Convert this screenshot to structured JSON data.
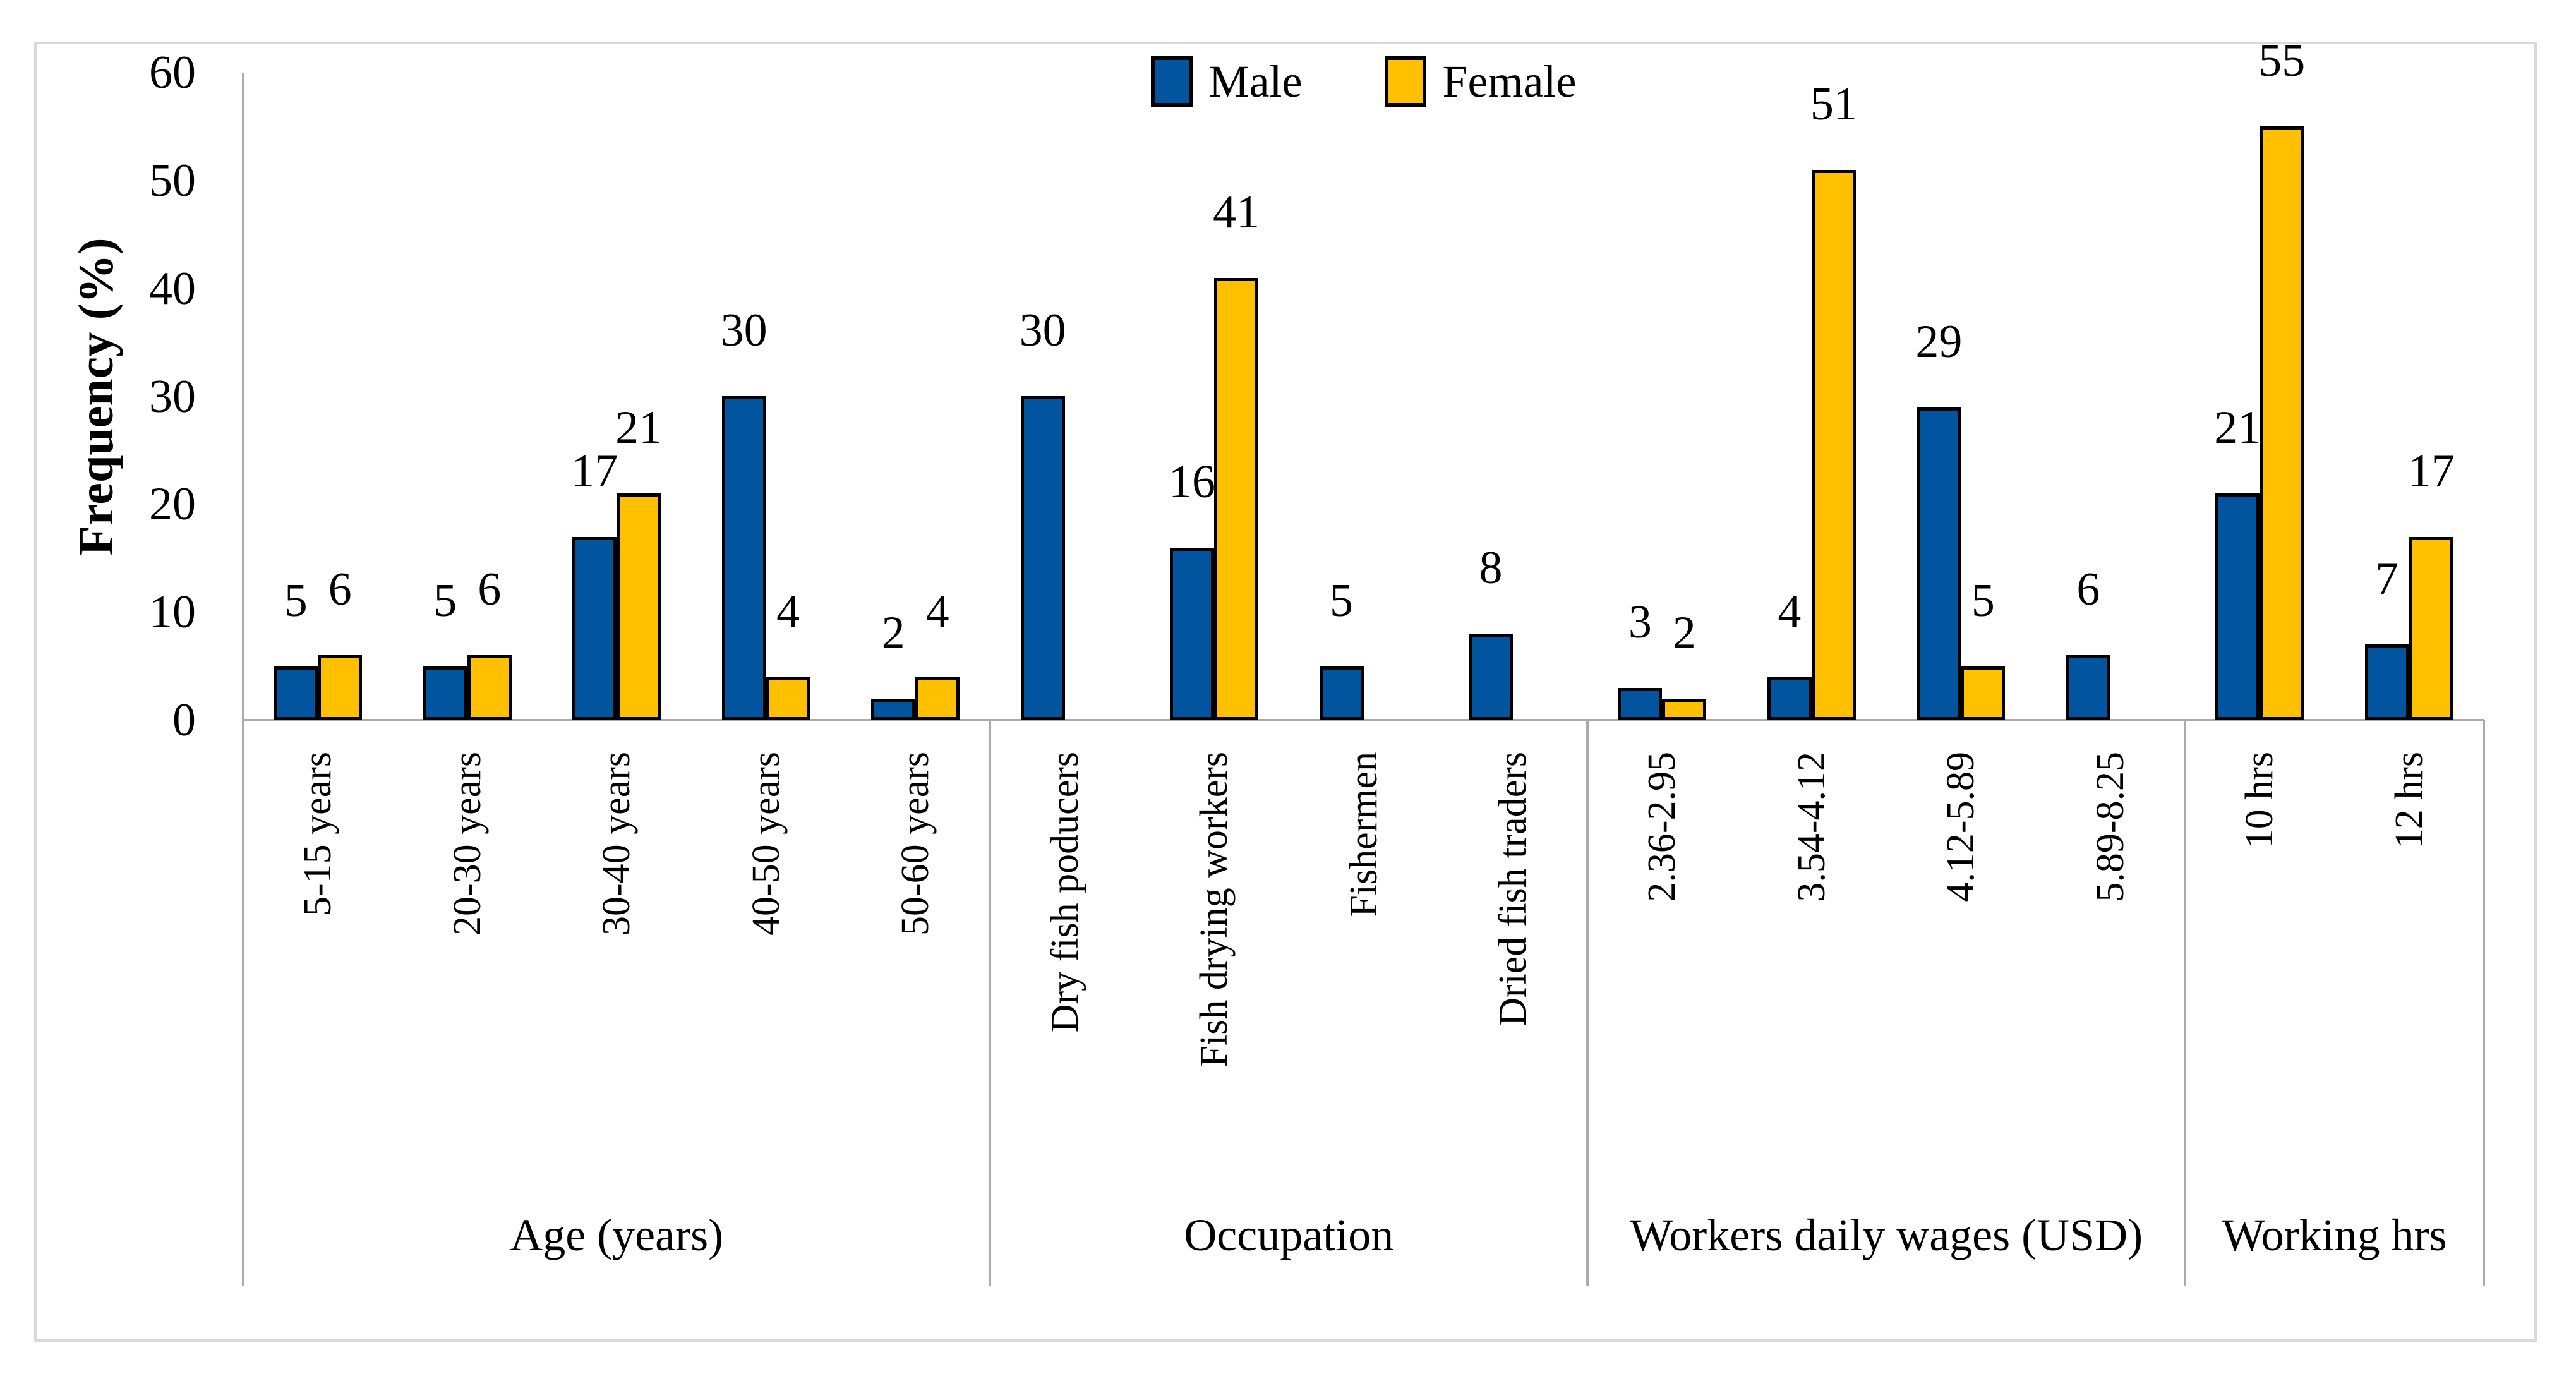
{
  "figure": {
    "background": "#ffffff",
    "border_color": "#d9d9d9"
  },
  "chart_data": {
    "type": "bar",
    "title": "",
    "ylabel": "Frequency (%)",
    "ylim": [
      0,
      60
    ],
    "yticks": [
      0,
      10,
      20,
      30,
      40,
      50,
      60
    ],
    "grid": "off",
    "legend": {
      "position": "top-center",
      "entries": [
        {
          "name": "Male",
          "color": "#00559E"
        },
        {
          "name": "Female",
          "color": "#FFC000"
        }
      ]
    },
    "colors": {
      "male": "#00559E",
      "female": "#FFC000",
      "bar_border": "#000000",
      "axis_line": "#ABABAB"
    },
    "groups": [
      {
        "label": "Age (years)",
        "categories": [
          {
            "label": "5-15 years",
            "male": 5,
            "female": 6
          },
          {
            "label": "20-30 years",
            "male": 5,
            "female": 6
          },
          {
            "label": "30-40 years",
            "male": 17,
            "female": 21
          },
          {
            "label": "40-50 years",
            "male": 30,
            "female": 4
          },
          {
            "label": "50-60 years",
            "male": 2,
            "female": 4
          }
        ]
      },
      {
        "label": "Occupation",
        "categories": [
          {
            "label": "Dry fish poducers",
            "male": 30,
            "female": null
          },
          {
            "label": "Fish drying workers",
            "male": 16,
            "female": 41
          },
          {
            "label": "Fishermen",
            "male": 5,
            "female": null
          },
          {
            "label": "Dried fish traders",
            "male": 8,
            "female": null
          }
        ]
      },
      {
        "label": "Workers daily wages (USD)",
        "categories": [
          {
            "label": "2.36-2.95",
            "male": 3,
            "female": 2
          },
          {
            "label": "3.54-4.12",
            "male": 4,
            "female": 51
          },
          {
            "label": "4.12-5.89",
            "male": 29,
            "female": 5
          },
          {
            "label": "5.89-8.25",
            "male": 6,
            "female": null
          }
        ]
      },
      {
        "label": "Working hrs",
        "categories": [
          {
            "label": "10 hrs",
            "male": 21,
            "female": 55
          },
          {
            "label": "12 hrs",
            "male": 7,
            "female": 17
          }
        ]
      }
    ]
  }
}
